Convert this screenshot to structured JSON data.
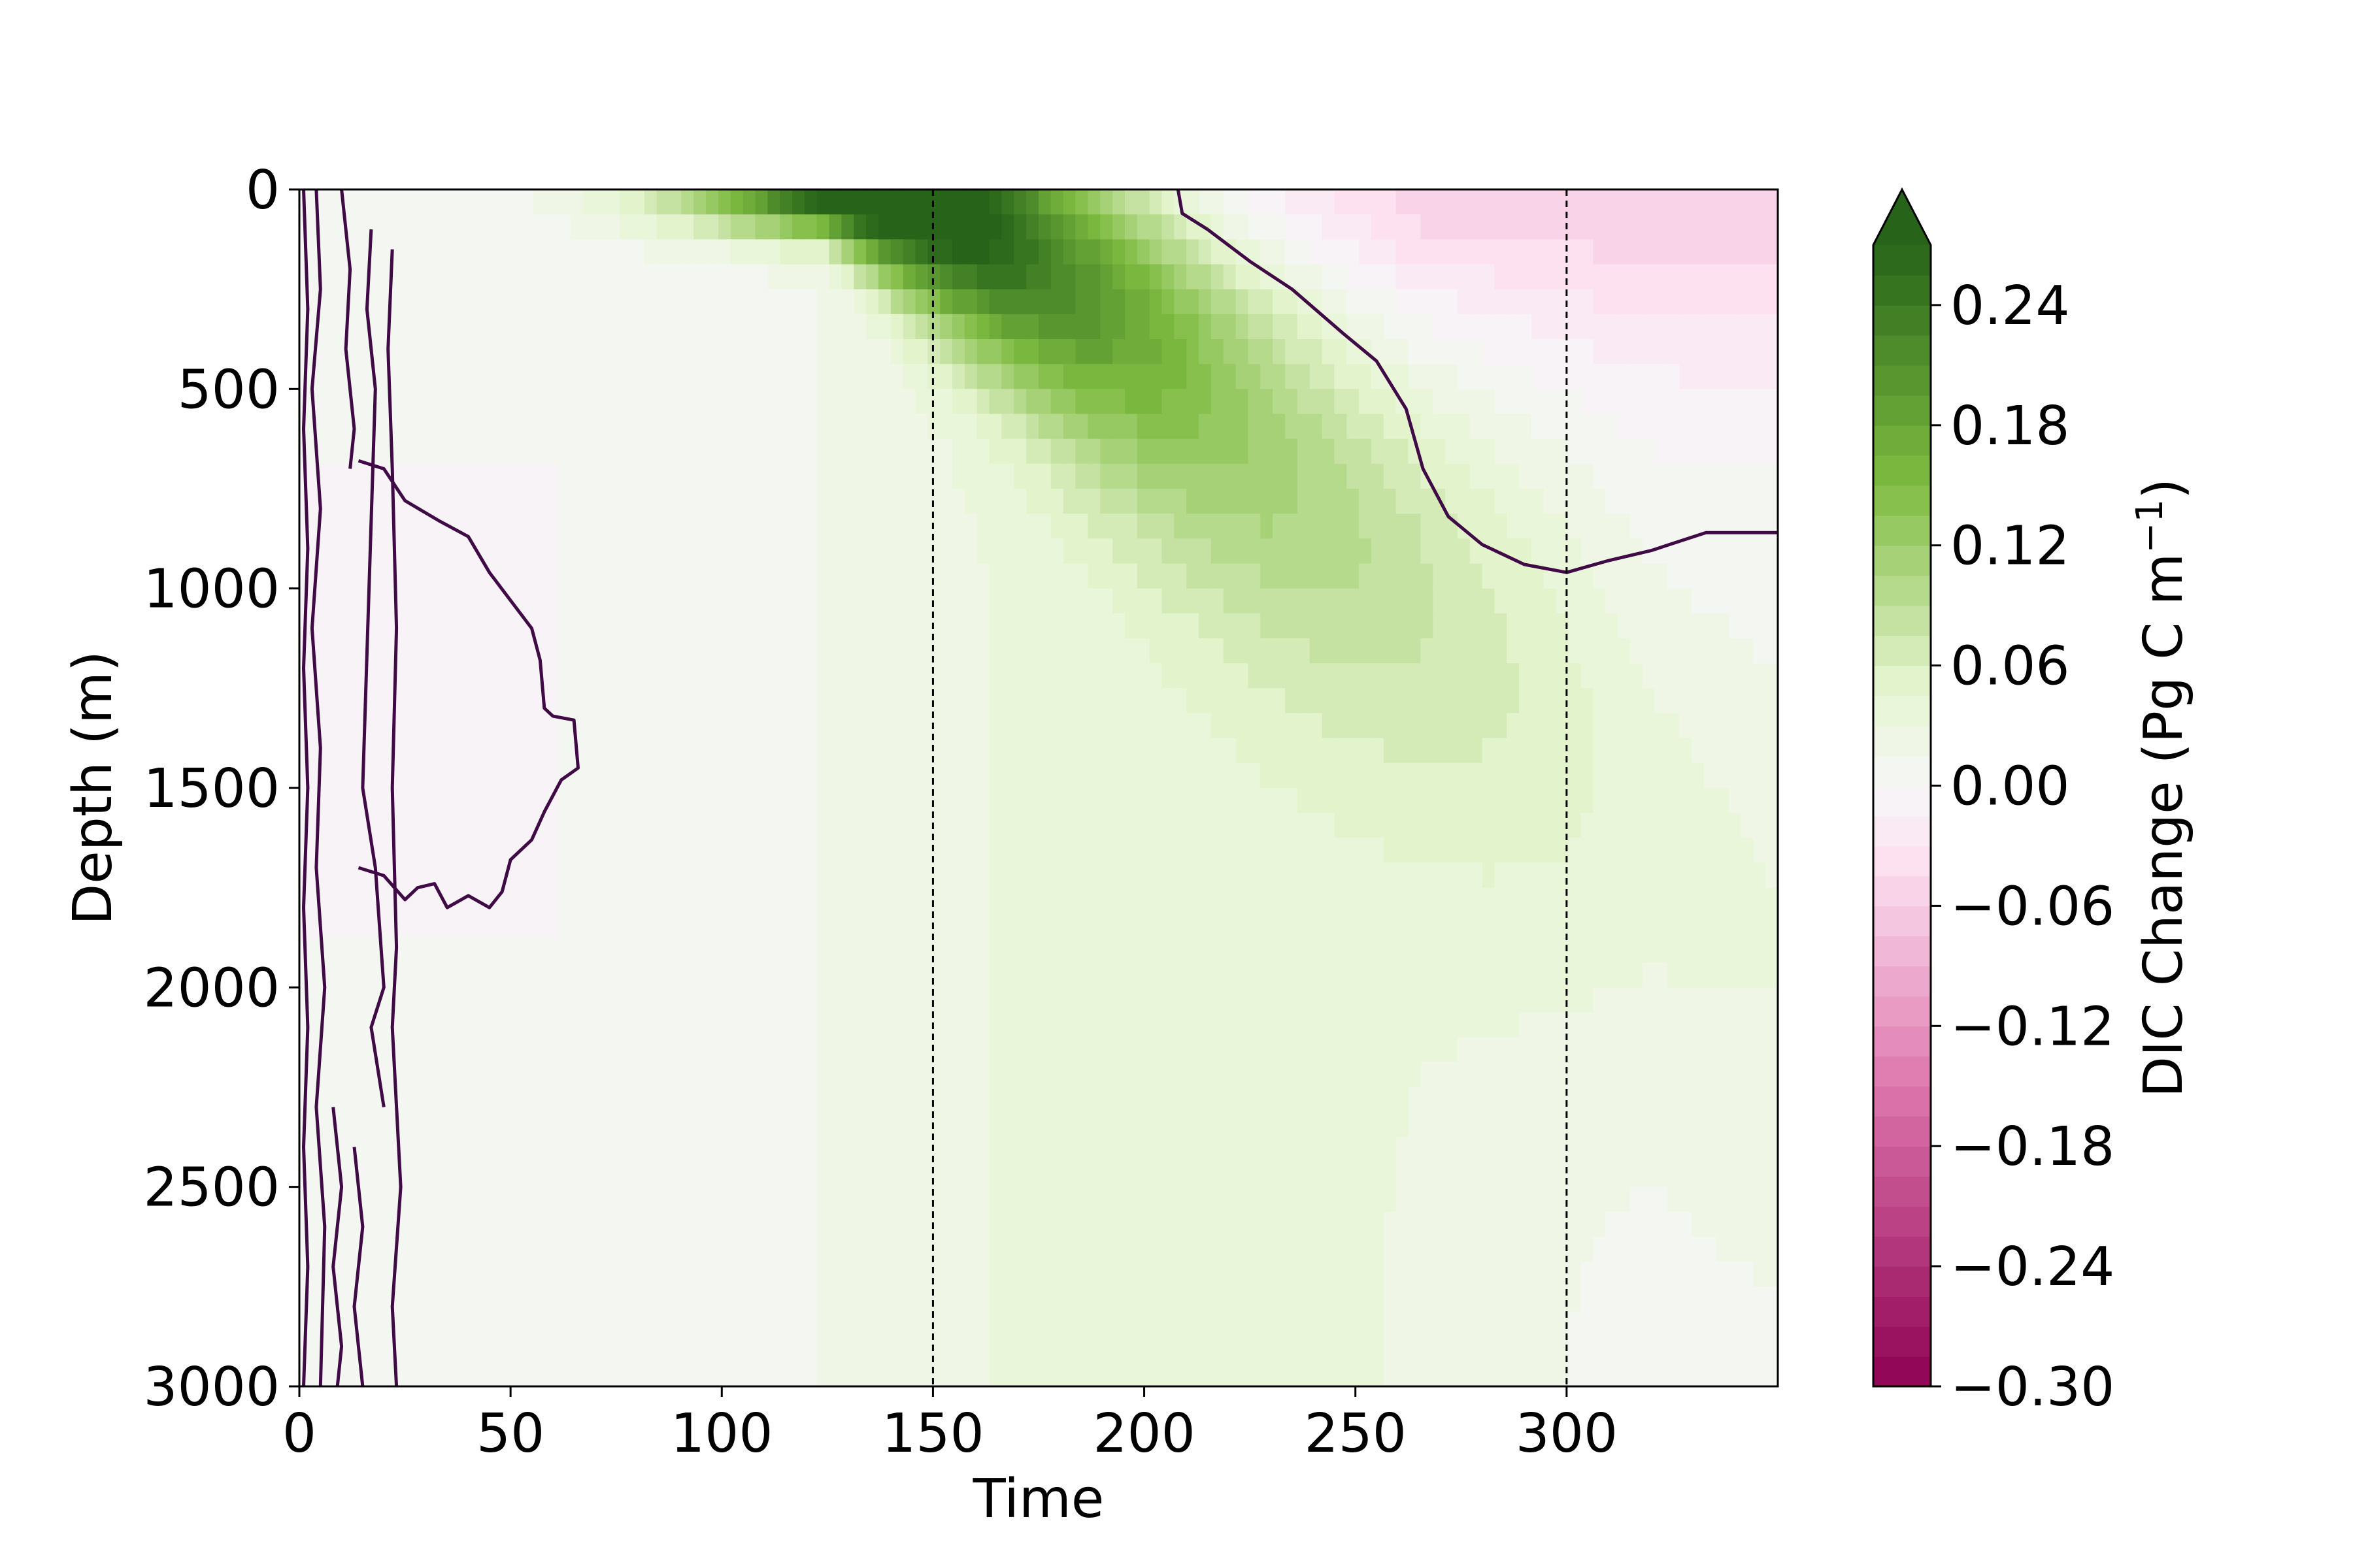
{
  "chart_data": {
    "type": "heatmap",
    "title": "",
    "xlabel": "Time",
    "ylabel": "Depth (m)",
    "xlim": [
      0,
      350
    ],
    "ylim": [
      3000,
      0
    ],
    "y_inverted": true,
    "x_ticks": [
      0,
      50,
      100,
      150,
      200,
      250,
      300
    ],
    "y_ticks": [
      0,
      500,
      1000,
      1500,
      2000,
      2500,
      3000
    ],
    "vertical_reference_lines": [
      150,
      300
    ],
    "colorbar": {
      "label_main": "DIC Change (Pg C m",
      "label_sup": "−1",
      "label_close": ")",
      "vmin": -0.3,
      "vmax": 0.27,
      "step": 0.015,
      "extend": "max",
      "ticks": [
        -0.3,
        -0.24,
        -0.18,
        -0.12,
        -0.06,
        0.0,
        0.06,
        0.12,
        0.18,
        0.24
      ],
      "tick_labels": [
        "−0.30",
        "−0.24",
        "−0.18",
        "−0.12",
        "−0.06",
        "0.00",
        "0.06",
        "0.12",
        "0.18",
        "0.24"
      ]
    },
    "colors": {
      "neg_strong": "#8e0152",
      "neg_mid": "#de77ae",
      "neg_light": "#fde0ef",
      "zero": "#f7f7f7",
      "pos_light": "#e6f5d0",
      "pos_mid": "#7fbc41",
      "pos_strong": "#276419",
      "contour": "#3f0a45"
    },
    "field_features": [
      {
        "name": "surface positive bloom",
        "t_center": 140,
        "depth_center": 0,
        "peak": 0.33
      },
      {
        "name": "deep positive plume",
        "t_center": 230,
        "depth_center": 2300,
        "peak": 0.032
      },
      {
        "name": "surface negative anomaly",
        "t_range": [
          205,
          350
        ],
        "depth_range": [
          0,
          450
        ],
        "peak": -0.06
      },
      {
        "name": "early negative lens",
        "t_range": [
          0,
          60
        ],
        "depth_range": [
          700,
          1850
        ],
        "peak": -0.012
      }
    ],
    "zero_contours": [
      {
        "name": "late contour",
        "points": [
          [
            208,
            0
          ],
          [
            209,
            60
          ],
          [
            215,
            100
          ],
          [
            225,
            180
          ],
          [
            235,
            250
          ],
          [
            247,
            360
          ],
          [
            255,
            430
          ],
          [
            262,
            550
          ],
          [
            266,
            700
          ],
          [
            272,
            820
          ],
          [
            280,
            890
          ],
          [
            290,
            940
          ],
          [
            300,
            960
          ],
          [
            310,
            930
          ],
          [
            320,
            905
          ],
          [
            333,
            860
          ],
          [
            350,
            860
          ]
        ]
      },
      {
        "name": "early lens contour",
        "points": [
          [
            14,
            680
          ],
          [
            20,
            700
          ],
          [
            25,
            780
          ],
          [
            33,
            830
          ],
          [
            40,
            870
          ],
          [
            45,
            960
          ],
          [
            50,
            1030
          ],
          [
            55,
            1100
          ],
          [
            57,
            1180
          ],
          [
            58,
            1300
          ],
          [
            60,
            1320
          ],
          [
            65,
            1330
          ],
          [
            66,
            1450
          ],
          [
            62,
            1480
          ],
          [
            58,
            1560
          ],
          [
            55,
            1630
          ],
          [
            50,
            1680
          ],
          [
            48,
            1760
          ],
          [
            45,
            1800
          ],
          [
            40,
            1770
          ],
          [
            35,
            1800
          ],
          [
            32,
            1740
          ],
          [
            28,
            1750
          ],
          [
            25,
            1780
          ],
          [
            20,
            1720
          ],
          [
            14,
            1700
          ]
        ]
      },
      {
        "name": "left strand a",
        "points": [
          [
            1,
            0
          ],
          [
            2,
            300
          ],
          [
            1,
            600
          ],
          [
            2,
            900
          ],
          [
            1,
            1200
          ],
          [
            2,
            1500
          ],
          [
            1,
            1800
          ],
          [
            2,
            2100
          ],
          [
            1,
            2400
          ],
          [
            2,
            2700
          ],
          [
            1,
            3000
          ]
        ]
      },
      {
        "name": "left strand b",
        "points": [
          [
            4,
            0
          ],
          [
            5,
            250
          ],
          [
            3,
            500
          ],
          [
            5,
            800
          ],
          [
            3,
            1100
          ],
          [
            5,
            1400
          ],
          [
            4,
            1700
          ],
          [
            6,
            2000
          ],
          [
            4,
            2300
          ],
          [
            6,
            2600
          ],
          [
            5,
            3000
          ]
        ]
      },
      {
        "name": "left strand c",
        "points": [
          [
            10,
            0
          ],
          [
            12,
            200
          ],
          [
            11,
            400
          ],
          [
            13,
            600
          ],
          [
            12,
            700
          ]
        ]
      },
      {
        "name": "left strand d",
        "points": [
          [
            17,
            100
          ],
          [
            16,
            300
          ],
          [
            18,
            500
          ],
          [
            15,
            1500
          ],
          [
            18,
            1700
          ],
          [
            20,
            2000
          ],
          [
            17,
            2100
          ],
          [
            20,
            2300
          ]
        ]
      },
      {
        "name": "left strand e",
        "points": [
          [
            22,
            150
          ],
          [
            21,
            400
          ],
          [
            22,
            700
          ],
          [
            23,
            1100
          ],
          [
            22,
            1500
          ],
          [
            23,
            1900
          ],
          [
            22,
            2100
          ],
          [
            24,
            2500
          ],
          [
            22,
            2800
          ],
          [
            23,
            3000
          ]
        ]
      },
      {
        "name": "left strand f",
        "points": [
          [
            8,
            2300
          ],
          [
            10,
            2500
          ],
          [
            8,
            2700
          ],
          [
            10,
            2900
          ],
          [
            9,
            3000
          ]
        ]
      },
      {
        "name": "left strand g",
        "points": [
          [
            13,
            2400
          ],
          [
            15,
            2600
          ],
          [
            13,
            2800
          ],
          [
            15,
            3000
          ]
        ]
      }
    ]
  }
}
